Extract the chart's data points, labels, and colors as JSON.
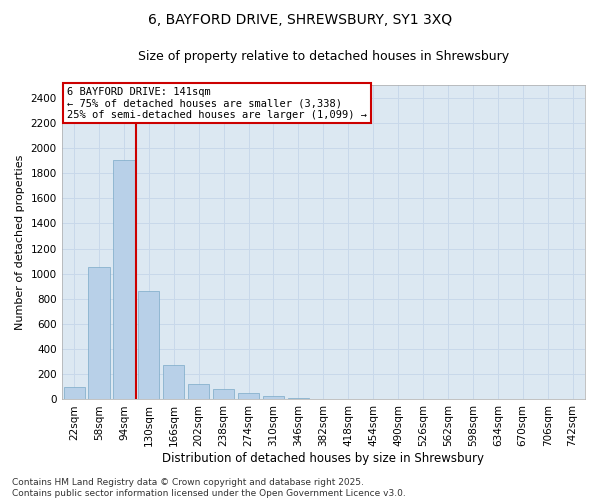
{
  "title1": "6, BAYFORD DRIVE, SHREWSBURY, SY1 3XQ",
  "title2": "Size of property relative to detached houses in Shrewsbury",
  "xlabel": "Distribution of detached houses by size in Shrewsbury",
  "ylabel": "Number of detached properties",
  "bar_labels": [
    "22sqm",
    "58sqm",
    "94sqm",
    "130sqm",
    "166sqm",
    "202sqm",
    "238sqm",
    "274sqm",
    "310sqm",
    "346sqm",
    "382sqm",
    "418sqm",
    "454sqm",
    "490sqm",
    "526sqm",
    "562sqm",
    "598sqm",
    "634sqm",
    "670sqm",
    "706sqm",
    "742sqm"
  ],
  "bar_values": [
    100,
    1050,
    1900,
    860,
    270,
    120,
    80,
    50,
    25,
    15,
    5,
    2,
    1,
    0,
    0,
    0,
    0,
    0,
    0,
    0,
    0
  ],
  "bar_color": "#b8d0e8",
  "bar_edge_color": "#7aaac8",
  "red_line_x": 2.5,
  "annotation_text": "6 BAYFORD DRIVE: 141sqm\n← 75% of detached houses are smaller (3,338)\n25% of semi-detached houses are larger (1,099) →",
  "annotation_box_color": "#ffffff",
  "annotation_box_edge": "#cc0000",
  "ylim": [
    0,
    2500
  ],
  "yticks": [
    0,
    200,
    400,
    600,
    800,
    1000,
    1200,
    1400,
    1600,
    1800,
    2000,
    2200,
    2400
  ],
  "grid_color": "#c8d8ea",
  "bg_color": "#dce8f2",
  "footer": "Contains HM Land Registry data © Crown copyright and database right 2025.\nContains public sector information licensed under the Open Government Licence v3.0.",
  "title1_fontsize": 10,
  "title2_fontsize": 9,
  "xlabel_fontsize": 8.5,
  "ylabel_fontsize": 8,
  "tick_fontsize": 7.5,
  "annot_fontsize": 7.5,
  "footer_fontsize": 6.5
}
